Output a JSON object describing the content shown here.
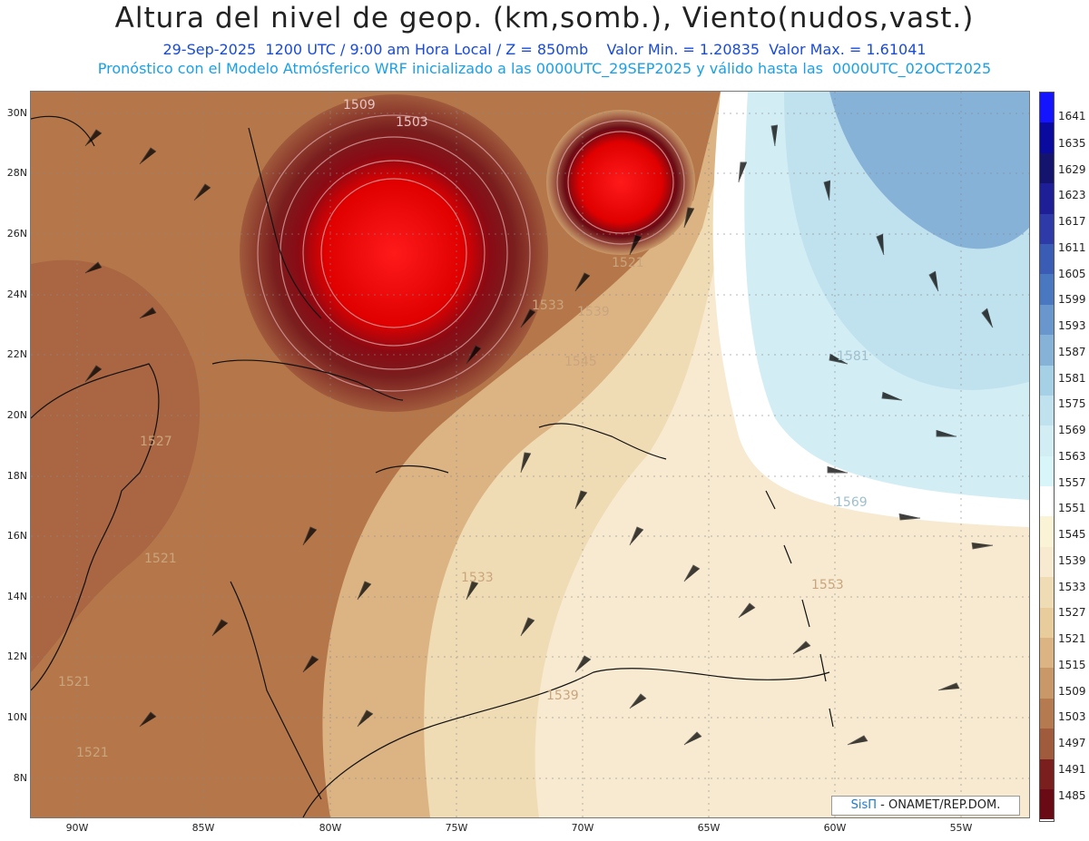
{
  "header": {
    "title": "Altura del nivel de geop. (km,somb.), Viento(nudos,vast.)",
    "line2": "29-Sep-2025  1200 UTC / 9:00 am Hora Local / Z = 850mb    Valor Min. = 1.20835  Valor Max. = 1.61041",
    "line3": "Pronóstico con el Modelo Atmósferico WRF inicializado a las 0000UTC_29SEP2025 y válido hasta las  0000UTC_02OCT2025"
  },
  "axes": {
    "lat_labels": [
      "30N",
      "28N",
      "26N",
      "24N",
      "22N",
      "20N",
      "18N",
      "16N",
      "14N",
      "12N",
      "10N",
      "8N"
    ],
    "lon_labels": [
      "90W",
      "85W",
      "80W",
      "75W",
      "70W",
      "65W",
      "60W",
      "55W"
    ]
  },
  "colorbar": {
    "labels": [
      "1641",
      "1635",
      "1629",
      "1623",
      "1617",
      "1611",
      "1605",
      "1599",
      "1593",
      "1587",
      "1581",
      "1575",
      "1569",
      "1563",
      "1557",
      "1551",
      "1545",
      "1539",
      "1533",
      "1527",
      "1521",
      "1515",
      "1509",
      "1503",
      "1497",
      "1491",
      "1485"
    ],
    "colors": [
      "#1414ff",
      "#0a0a9e",
      "#14146e",
      "#1e1e96",
      "#2d3aa8",
      "#3a5cb4",
      "#4a78c0",
      "#6996cc",
      "#86b2d8",
      "#a6d0e6",
      "#c0e2ee",
      "#d2eef4",
      "#d8f6fa",
      "#ffffff",
      "#fbf3d6",
      "#f7ead0",
      "#f0dcb4",
      "#e8cc9c",
      "#dcb484",
      "#c89868",
      "#b57a4f",
      "#a05a3c",
      "#7a1e1e",
      "#6a0a14",
      "#9a0000",
      "#c80000",
      "#ff1a1a"
    ]
  },
  "contour_labels": [
    "1509",
    "1503",
    "1521",
    "1533",
    "1539",
    "1545",
    "1581",
    "1527",
    "1569",
    "1521",
    "1533",
    "1553",
    "1521",
    "1539",
    "1521"
  ],
  "credit": {
    "brand": "SisΠ",
    "text": " - ONAMET/REP.DOM."
  }
}
